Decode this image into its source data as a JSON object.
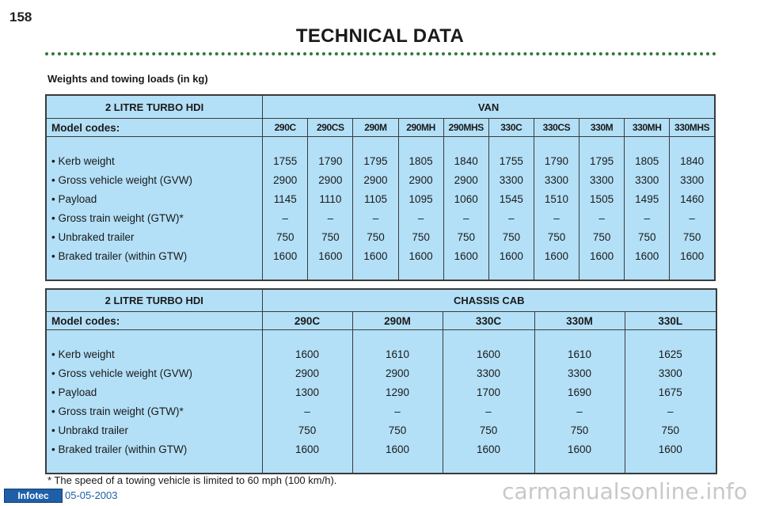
{
  "page_number": "158",
  "title": "TECHNICAL DATA",
  "section_caption": "Weights and towing loads (in kg)",
  "van_table": {
    "engine": "2 LITRE TURBO HDI",
    "body": "VAN",
    "codes_label": "Model codes:",
    "codes": [
      "290C",
      "290CS",
      "290M",
      "290MH",
      "290MHS",
      "330C",
      "330CS",
      "330M",
      "330MH",
      "330MHS"
    ],
    "rows": [
      {
        "label": "•  Kerb weight",
        "values": [
          "1755",
          "1790",
          "1795",
          "1805",
          "1840",
          "1755",
          "1790",
          "1795",
          "1805",
          "1840"
        ]
      },
      {
        "label": "•  Gross vehicle weight (GVW)",
        "values": [
          "2900",
          "2900",
          "2900",
          "2900",
          "2900",
          "3300",
          "3300",
          "3300",
          "3300",
          "3300"
        ]
      },
      {
        "label": "•  Payload",
        "values": [
          "1145",
          "1110",
          "1105",
          "1095",
          "1060",
          "1545",
          "1510",
          "1505",
          "1495",
          "1460"
        ]
      },
      {
        "label": "•  Gross train weight (GTW)*",
        "values": [
          "–",
          "–",
          "–",
          "–",
          "–",
          "–",
          "–",
          "–",
          "–",
          "–"
        ]
      },
      {
        "label": "•  Unbraked trailer",
        "values": [
          "750",
          "750",
          "750",
          "750",
          "750",
          "750",
          "750",
          "750",
          "750",
          "750"
        ]
      },
      {
        "label": "•  Braked trailer (within GTW)",
        "values": [
          "1600",
          "1600",
          "1600",
          "1600",
          "1600",
          "1600",
          "1600",
          "1600",
          "1600",
          "1600"
        ]
      }
    ]
  },
  "cab_table": {
    "engine": "2 LITRE TURBO HDI",
    "body": "CHASSIS CAB",
    "codes_label": "Model codes:",
    "codes": [
      "290C",
      "290M",
      "330C",
      "330M",
      "330L"
    ],
    "rows": [
      {
        "label": "• Kerb weight",
        "values": [
          "1600",
          "1610",
          "1600",
          "1610",
          "1625"
        ]
      },
      {
        "label": "• Gross vehicle weight (GVW)",
        "values": [
          "2900",
          "2900",
          "3300",
          "3300",
          "3300"
        ]
      },
      {
        "label": "• Payload",
        "values": [
          "1300",
          "1290",
          "1700",
          "1690",
          "1675"
        ]
      },
      {
        "label": "• Gross train weight (GTW)*",
        "values": [
          "–",
          "–",
          "–",
          "–",
          "–"
        ]
      },
      {
        "label": "• Unbrakd trailer",
        "values": [
          "750",
          "750",
          "750",
          "750",
          "750"
        ]
      },
      {
        "label": "• Braked trailer (within GTW)",
        "values": [
          "1600",
          "1600",
          "1600",
          "1600",
          "1600"
        ]
      }
    ]
  },
  "footnote": "* The speed of a towing vehicle is limited to 60 mph (100 km/h).",
  "brand": "Infotec",
  "date": "05-05-2003",
  "watermark": "carmanualsonline.info",
  "colors": {
    "table_fill": "#b3e0f7",
    "rule_dots": "#2b7a3c",
    "brand_blue": "#1f5fa8"
  }
}
